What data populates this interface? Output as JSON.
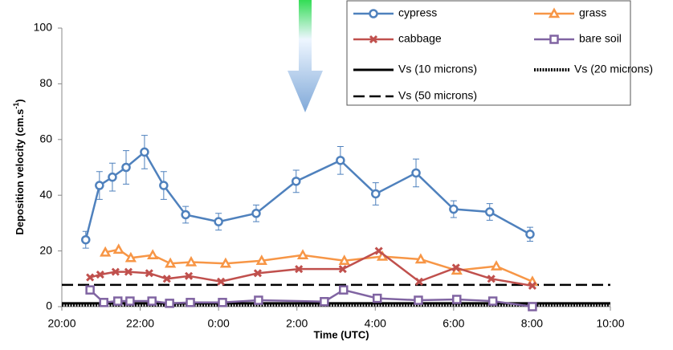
{
  "chart_data": {
    "type": "line",
    "x_label": "Time (UTC)",
    "y_label": {
      "text": "Deposition velocity (cm.s",
      "sup": "-1",
      "end": ")"
    },
    "xlim": [
      0,
      14
    ],
    "xticks": [
      {
        "value": 0,
        "label": "20:00"
      },
      {
        "value": 2,
        "label": "22:00"
      },
      {
        "value": 4,
        "label": "0:00"
      },
      {
        "value": 6,
        "label": "2:00"
      },
      {
        "value": 8,
        "label": "4:00"
      },
      {
        "value": 10,
        "label": "6:00"
      },
      {
        "value": 12,
        "label": "8:00"
      },
      {
        "value": 14,
        "label": "10:00"
      }
    ],
    "ylim": [
      0,
      100
    ],
    "yticks": [
      0,
      20,
      40,
      60,
      80,
      100
    ],
    "series": [
      {
        "name": "cypress",
        "color": "#4f81bd",
        "marker": "circle",
        "x": [
          0.61,
          0.96,
          1.29,
          1.64,
          2.11,
          2.6,
          3.16,
          4.0,
          4.96,
          5.98,
          7.11,
          8.01,
          9.04,
          10.0,
          10.92,
          11.95
        ],
        "values": [
          24,
          43.5,
          46.5,
          50,
          55.5,
          43.5,
          33,
          30.5,
          33.5,
          45,
          52.5,
          40.5,
          48,
          35,
          34,
          26
        ],
        "errors": [
          3,
          5,
          5,
          6,
          6,
          5,
          3,
          3,
          3,
          4,
          5,
          4,
          5,
          3,
          3,
          2.5
        ]
      },
      {
        "name": "grass",
        "color": "#f79646",
        "marker": "triangle",
        "x": [
          1.11,
          1.45,
          1.76,
          2.32,
          2.77,
          3.3,
          4.18,
          5.1,
          6.15,
          7.21,
          8.18,
          9.16,
          10.08,
          11.09,
          12.01
        ],
        "values": [
          19.5,
          20.5,
          17.5,
          18.5,
          15.5,
          16,
          15.5,
          16.5,
          18.5,
          16.5,
          18,
          17,
          13,
          14.5,
          9
        ]
      },
      {
        "name": "cabbage",
        "color": "#c0504d",
        "marker": "x",
        "x": [
          0.72,
          0.98,
          1.37,
          1.7,
          2.23,
          2.68,
          3.24,
          4.06,
          5.0,
          6.05,
          7.17,
          8.09,
          9.12,
          10.06,
          10.96,
          12.01
        ],
        "values": [
          10.5,
          11.5,
          12.5,
          12.5,
          12,
          10,
          11,
          9,
          12,
          13.5,
          13.5,
          20,
          9,
          14,
          10,
          7.5
        ]
      },
      {
        "name": "bare soil",
        "color": "#8064a2",
        "marker": "square",
        "x": [
          0.72,
          1.07,
          1.43,
          1.74,
          2.3,
          2.75,
          3.28,
          4.1,
          5.02,
          6.7,
          7.19,
          8.05,
          9.1,
          10.08,
          11.0,
          12.01
        ],
        "values": [
          6,
          1.5,
          2,
          2,
          2,
          1.2,
          1.5,
          1.5,
          2.3,
          1.8,
          6,
          3,
          2.3,
          2.6,
          2,
          0
        ]
      }
    ],
    "reference_lines": [
      {
        "name": "Vs (10 microns)",
        "value": 1.2,
        "dash": "solid"
      },
      {
        "name": "Vs (20 microns)",
        "value": 0.6,
        "dash": "dotted"
      },
      {
        "name": "Vs (50 microns)",
        "value": 7.8,
        "dash": "dashed"
      }
    ]
  }
}
